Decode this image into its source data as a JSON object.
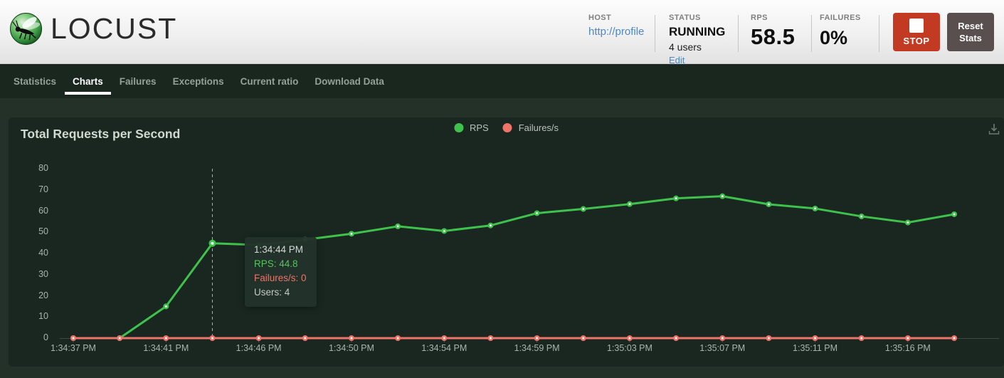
{
  "header": {
    "logo_text": "LOCUST",
    "host": {
      "label": "HOST",
      "value": "http://profile"
    },
    "status": {
      "label": "STATUS",
      "value": "RUNNING",
      "users": "4 users",
      "edit_label": "Edit"
    },
    "rps": {
      "label": "RPS",
      "value": "58.5"
    },
    "failures": {
      "label": "FAILURES",
      "value": "0%"
    },
    "stop_label": "STOP",
    "reset_label": "Reset Stats"
  },
  "nav": {
    "tabs": [
      {
        "label": "Statistics",
        "active": false
      },
      {
        "label": "Charts",
        "active": true
      },
      {
        "label": "Failures",
        "active": false
      },
      {
        "label": "Exceptions",
        "active": false
      },
      {
        "label": "Current ratio",
        "active": false
      },
      {
        "label": "Download Data",
        "active": false
      }
    ]
  },
  "chart_data": {
    "type": "line",
    "title": "Total Requests per Second",
    "x": [
      "1:34:37 PM",
      "1:34:39 PM",
      "1:34:41 PM",
      "1:34:44 PM",
      "1:34:46 PM",
      "1:34:48 PM",
      "1:34:50 PM",
      "1:34:52 PM",
      "1:34:54 PM",
      "1:34:57 PM",
      "1:34:59 PM",
      "1:35:01 PM",
      "1:35:03 PM",
      "1:35:05 PM",
      "1:35:07 PM",
      "1:35:09 PM",
      "1:35:11 PM",
      "1:35:14 PM",
      "1:35:16 PM",
      "1:35:18 PM"
    ],
    "x_labeled_indices": [
      0,
      2,
      4,
      6,
      8,
      10,
      12,
      14,
      16,
      18
    ],
    "yticks": [
      0,
      10,
      20,
      30,
      40,
      50,
      60,
      70,
      80
    ],
    "ylim": [
      0,
      80
    ],
    "grid": false,
    "legend_position": "top-center",
    "series": [
      {
        "name": "RPS",
        "color": "#3fc24b",
        "values": [
          0,
          0,
          15,
          44.8,
          44,
          46.5,
          49.3,
          52.8,
          50.6,
          53.2,
          59,
          61,
          63.3,
          66,
          67,
          63.2,
          61.2,
          57.5,
          54.6,
          58.5
        ]
      },
      {
        "name": "Failures/s",
        "color": "#ee7368",
        "values": [
          0,
          0,
          0,
          0,
          0,
          0,
          0,
          0,
          0,
          0,
          0,
          0,
          0,
          0,
          0,
          0,
          0,
          0,
          0,
          0
        ]
      }
    ],
    "tooltip": {
      "point_index": 3,
      "time": "1:34:44 PM",
      "rps_line": "RPS: 44.8",
      "failures_line": "Failures/s: 0",
      "users_line": "Users: 4"
    }
  },
  "colors": {
    "accent_green": "#3fc24b",
    "accent_red": "#ee7368",
    "link_blue": "#4a88c7",
    "stop_red": "#c23a22",
    "reset_gray": "#594f4f",
    "nav_bg": "#19271e",
    "page_bg": "#233129",
    "panel_bg": "#1a2721"
  }
}
